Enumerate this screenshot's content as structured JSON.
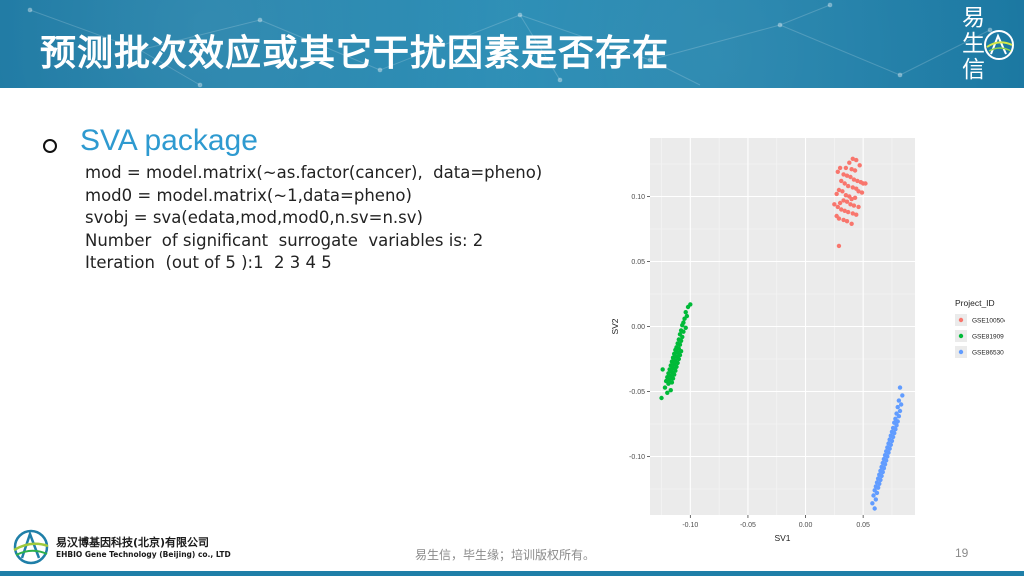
{
  "slide": {
    "title": "预测批次效应或其它干扰因素是否存在",
    "page_number": "19"
  },
  "brand": {
    "chars": [
      "易",
      "生",
      "信"
    ]
  },
  "section": {
    "heading": "SVA package",
    "code_lines": [
      "mod = model.matrix(~as.factor(cancer),  data=pheno)",
      "mod0 = model.matrix(~1,data=pheno)",
      "svobj = sva(edata,mod,mod0,n.sv=n.sv)",
      "Number  of significant  surrogate  variables is: 2",
      "Iteration  (out of 5 ):1  2 3 4 5"
    ]
  },
  "footer": {
    "company_cn": "易汉博基因科技(北京)有限公司",
    "company_en": "EHBIO Gene Technology (Beijing) co., LTD",
    "note": "易生信，毕生缘；培训版权所有。"
  },
  "colors": {
    "header": "#1f7fa8",
    "accent": "#2e9ad0",
    "series": [
      "#f8766d",
      "#00ba38",
      "#619cff"
    ]
  },
  "chart_data": {
    "type": "scatter",
    "title": "",
    "xlabel": "SV1",
    "ylabel": "SV2",
    "xlim": [
      -0.135,
      0.095
    ],
    "ylim": [
      -0.145,
      0.145
    ],
    "x_ticks": [
      -0.1,
      -0.05,
      0.0,
      0.05
    ],
    "x_tick_labels": [
      "-0.10",
      "-0.05",
      "0.00",
      "0.05"
    ],
    "y_ticks": [
      -0.1,
      -0.05,
      0.0,
      0.05,
      0.1
    ],
    "y_tick_labels": [
      "-0.10",
      "-0.05",
      "0.00",
      "0.05",
      "0.10"
    ],
    "grid": true,
    "legend_title": "Project_ID",
    "legend_position": "right",
    "series": [
      {
        "name": "GSE100504",
        "x": [
          0.041,
          0.044,
          0.038,
          0.047,
          0.035,
          0.04,
          0.043,
          0.03,
          0.028,
          0.033,
          0.036,
          0.039,
          0.042,
          0.045,
          0.048,
          0.05,
          0.052,
          0.031,
          0.034,
          0.037,
          0.041,
          0.044,
          0.029,
          0.032,
          0.046,
          0.049,
          0.027,
          0.035,
          0.038,
          0.043,
          0.04,
          0.033,
          0.036,
          0.03,
          0.039,
          0.042,
          0.046,
          0.025,
          0.028,
          0.031,
          0.034,
          0.037,
          0.041,
          0.044,
          0.027,
          0.029,
          0.033,
          0.036,
          0.04,
          0.029
        ],
        "y": [
          0.129,
          0.128,
          0.126,
          0.124,
          0.122,
          0.121,
          0.12,
          0.122,
          0.119,
          0.117,
          0.116,
          0.115,
          0.113,
          0.112,
          0.111,
          0.11,
          0.11,
          0.112,
          0.11,
          0.108,
          0.107,
          0.106,
          0.105,
          0.104,
          0.104,
          0.103,
          0.102,
          0.101,
          0.1,
          0.099,
          0.098,
          0.097,
          0.096,
          0.095,
          0.094,
          0.093,
          0.092,
          0.094,
          0.092,
          0.09,
          0.089,
          0.088,
          0.087,
          0.086,
          0.085,
          0.083,
          0.082,
          0.081,
          0.079,
          0.062
        ]
      },
      {
        "name": "GSE81909",
        "x": [
          -0.1,
          -0.102,
          -0.104,
          -0.103,
          -0.105,
          -0.106,
          -0.107,
          -0.104,
          -0.108,
          -0.106,
          -0.109,
          -0.107,
          -0.11,
          -0.108,
          -0.111,
          -0.109,
          -0.112,
          -0.11,
          -0.113,
          -0.108,
          -0.111,
          -0.114,
          -0.109,
          -0.112,
          -0.115,
          -0.11,
          -0.113,
          -0.116,
          -0.111,
          -0.114,
          -0.117,
          -0.112,
          -0.115,
          -0.118,
          -0.113,
          -0.116,
          -0.119,
          -0.114,
          -0.117,
          -0.12,
          -0.115,
          -0.118,
          -0.121,
          -0.116,
          -0.119,
          -0.124,
          -0.122,
          -0.117,
          -0.12,
          -0.125
        ],
        "y": [
          0.017,
          0.015,
          0.011,
          0.008,
          0.006,
          0.003,
          0.001,
          -0.001,
          -0.003,
          -0.004,
          -0.006,
          -0.008,
          -0.01,
          -0.011,
          -0.013,
          -0.014,
          -0.016,
          -0.017,
          -0.018,
          -0.019,
          -0.02,
          -0.021,
          -0.022,
          -0.023,
          -0.024,
          -0.025,
          -0.026,
          -0.027,
          -0.028,
          -0.029,
          -0.03,
          -0.031,
          -0.032,
          -0.033,
          -0.034,
          -0.035,
          -0.036,
          -0.037,
          -0.038,
          -0.039,
          -0.04,
          -0.041,
          -0.042,
          -0.043,
          -0.044,
          -0.033,
          -0.047,
          -0.049,
          -0.051,
          -0.055
        ]
      },
      {
        "name": "GSE86530",
        "x": [
          0.082,
          0.084,
          0.081,
          0.083,
          0.08,
          0.082,
          0.079,
          0.081,
          0.078,
          0.08,
          0.077,
          0.079,
          0.076,
          0.078,
          0.075,
          0.077,
          0.074,
          0.076,
          0.073,
          0.075,
          0.072,
          0.074,
          0.071,
          0.073,
          0.07,
          0.072,
          0.069,
          0.071,
          0.068,
          0.07,
          0.067,
          0.069,
          0.066,
          0.068,
          0.065,
          0.067,
          0.064,
          0.066,
          0.063,
          0.065,
          0.062,
          0.064,
          0.061,
          0.063,
          0.06,
          0.062,
          0.059,
          0.061,
          0.058,
          0.06
        ],
        "y": [
          -0.047,
          -0.053,
          -0.057,
          -0.06,
          -0.062,
          -0.065,
          -0.067,
          -0.069,
          -0.071,
          -0.073,
          -0.074,
          -0.076,
          -0.078,
          -0.079,
          -0.081,
          -0.082,
          -0.084,
          -0.085,
          -0.087,
          -0.088,
          -0.09,
          -0.091,
          -0.093,
          -0.094,
          -0.096,
          -0.097,
          -0.099,
          -0.1,
          -0.102,
          -0.103,
          -0.105,
          -0.106,
          -0.108,
          -0.109,
          -0.111,
          -0.112,
          -0.114,
          -0.115,
          -0.117,
          -0.118,
          -0.12,
          -0.121,
          -0.123,
          -0.124,
          -0.126,
          -0.128,
          -0.13,
          -0.133,
          -0.136,
          -0.14
        ]
      }
    ]
  }
}
